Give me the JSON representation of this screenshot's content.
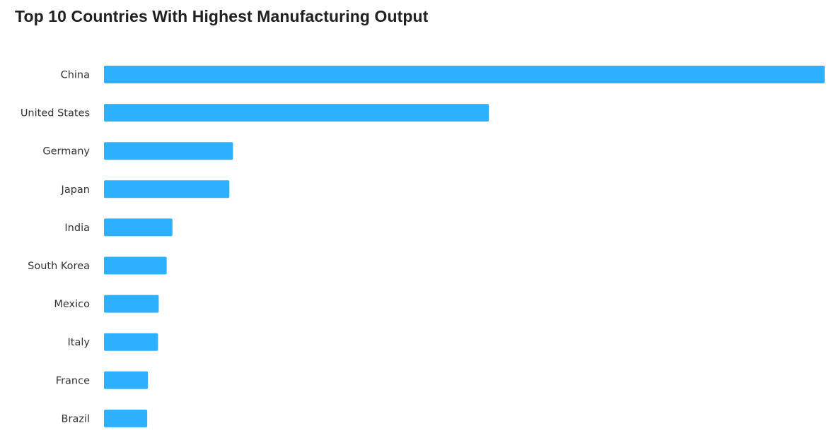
{
  "chart_data": {
    "type": "bar",
    "orientation": "horizontal",
    "title": "Top 10 Countries With Highest Manufacturing Output",
    "categories": [
      "China",
      "United States",
      "Germany",
      "Japan",
      "India",
      "South Korea",
      "Mexico",
      "Italy",
      "France",
      "Brazil"
    ],
    "values": [
      100,
      53.4,
      17.9,
      17.4,
      9.5,
      8.7,
      7.6,
      7.5,
      6.1,
      6.0
    ],
    "xlim": [
      0,
      100
    ],
    "grid": false,
    "legend": "none",
    "bar_color": "#2DB0FF"
  }
}
